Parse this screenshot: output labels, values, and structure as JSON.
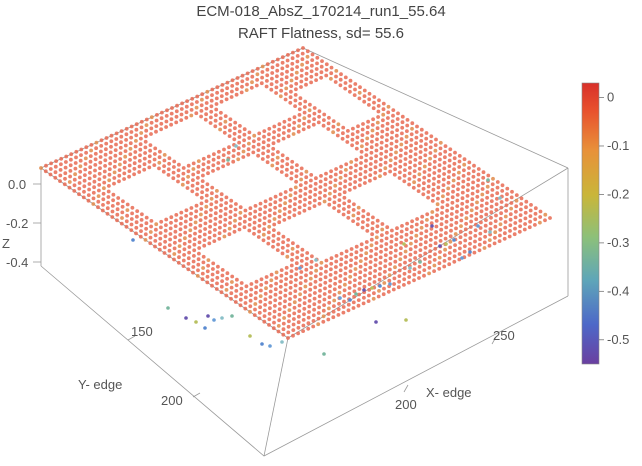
{
  "chart_data": {
    "type": "scatter",
    "title": "ECM-018_AbsZ_170214_run1_55.64",
    "subtitle": "RAFT Flatness, sd= 55.6",
    "xlabel": "X- edge",
    "ylabel": "Y- edge",
    "zlabel": "Z",
    "x_ticks": [
      "200",
      "250"
    ],
    "y_ticks": [
      "150",
      "200"
    ],
    "z_ticks": [
      "0.0",
      "-0.2",
      "-0.4"
    ],
    "zlim": [
      -0.55,
      0.03
    ],
    "colorbar": {
      "ticks": [
        "0",
        "-0.1",
        "-0.2",
        "-0.3",
        "-0.4",
        "-0.5"
      ],
      "tick_values": [
        0,
        -0.1,
        -0.2,
        -0.3,
        -0.4,
        -0.5
      ],
      "range": [
        -0.55,
        0.03
      ],
      "colors": [
        "#6a3fa0",
        "#4d68c8",
        "#5fa6b8",
        "#8cc07a",
        "#c9b63a",
        "#e8913a",
        "#e8522e",
        "#d8302a"
      ]
    },
    "surface_value_approx": 0.0,
    "outlier_value_range": [
      -0.5,
      -0.2
    ]
  }
}
